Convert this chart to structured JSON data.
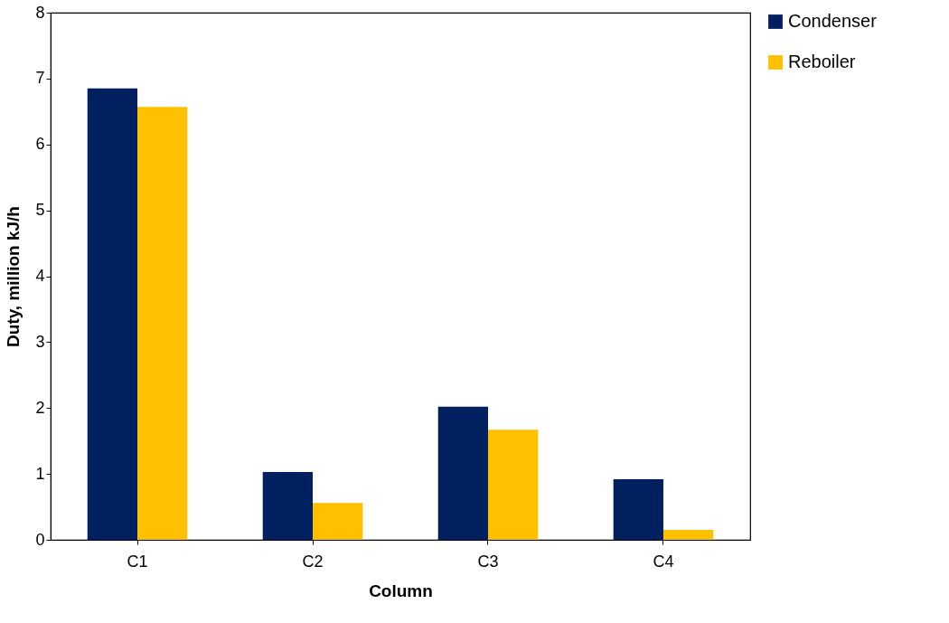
{
  "chart_data": {
    "type": "bar",
    "xlabel": "Column",
    "ylabel": "Duty, million kJ/h",
    "categories": [
      "C1",
      "C2",
      "C3",
      "C4"
    ],
    "series": [
      {
        "name": "Condenser",
        "color": "#002060",
        "values": [
          6.85,
          1.03,
          2.02,
          0.92
        ]
      },
      {
        "name": "Reboiler",
        "color": "#ffc000",
        "values": [
          6.57,
          0.56,
          1.67,
          0.15
        ]
      }
    ],
    "ylim": [
      0,
      8
    ],
    "yticks": [
      0,
      1,
      2,
      3,
      4,
      5,
      6,
      7,
      8
    ],
    "grid": false,
    "legend": "right"
  }
}
